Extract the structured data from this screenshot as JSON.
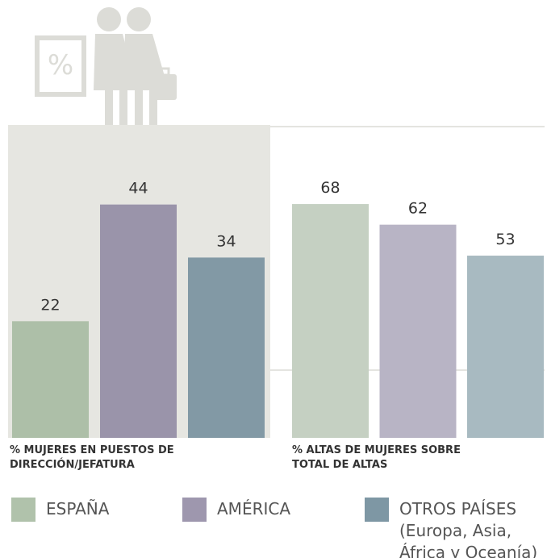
{
  "chart_data": [
    {
      "type": "bar",
      "title": "% MUJERES EN PUESTOS DE DIRECCIÓN/JEFATURA",
      "values": [
        22,
        44,
        34
      ],
      "colors": [
        "#adbfa8",
        "#9a94aa",
        "#8299a5"
      ],
      "ylim": [
        0,
        59
      ]
    },
    {
      "type": "bar",
      "title": "% ALTAS DE MUJERES SOBRE TOTAL DE ALTAS",
      "values": [
        68,
        62,
        53
      ],
      "colors": [
        "#c5d0c2",
        "#b8b4c5",
        "#a8bac1"
      ],
      "ylim": [
        0,
        91
      ]
    }
  ],
  "legend": [
    {
      "name": "ESPAÑA",
      "color": "#b0c2ab"
    },
    {
      "name": "AMÉRICA",
      "color": "#9e97ae"
    },
    {
      "name": "OTROS PAÍSES",
      "detail": "(Europa, Asia, África y Oceanía)",
      "color": "#7e97a4"
    }
  ]
}
